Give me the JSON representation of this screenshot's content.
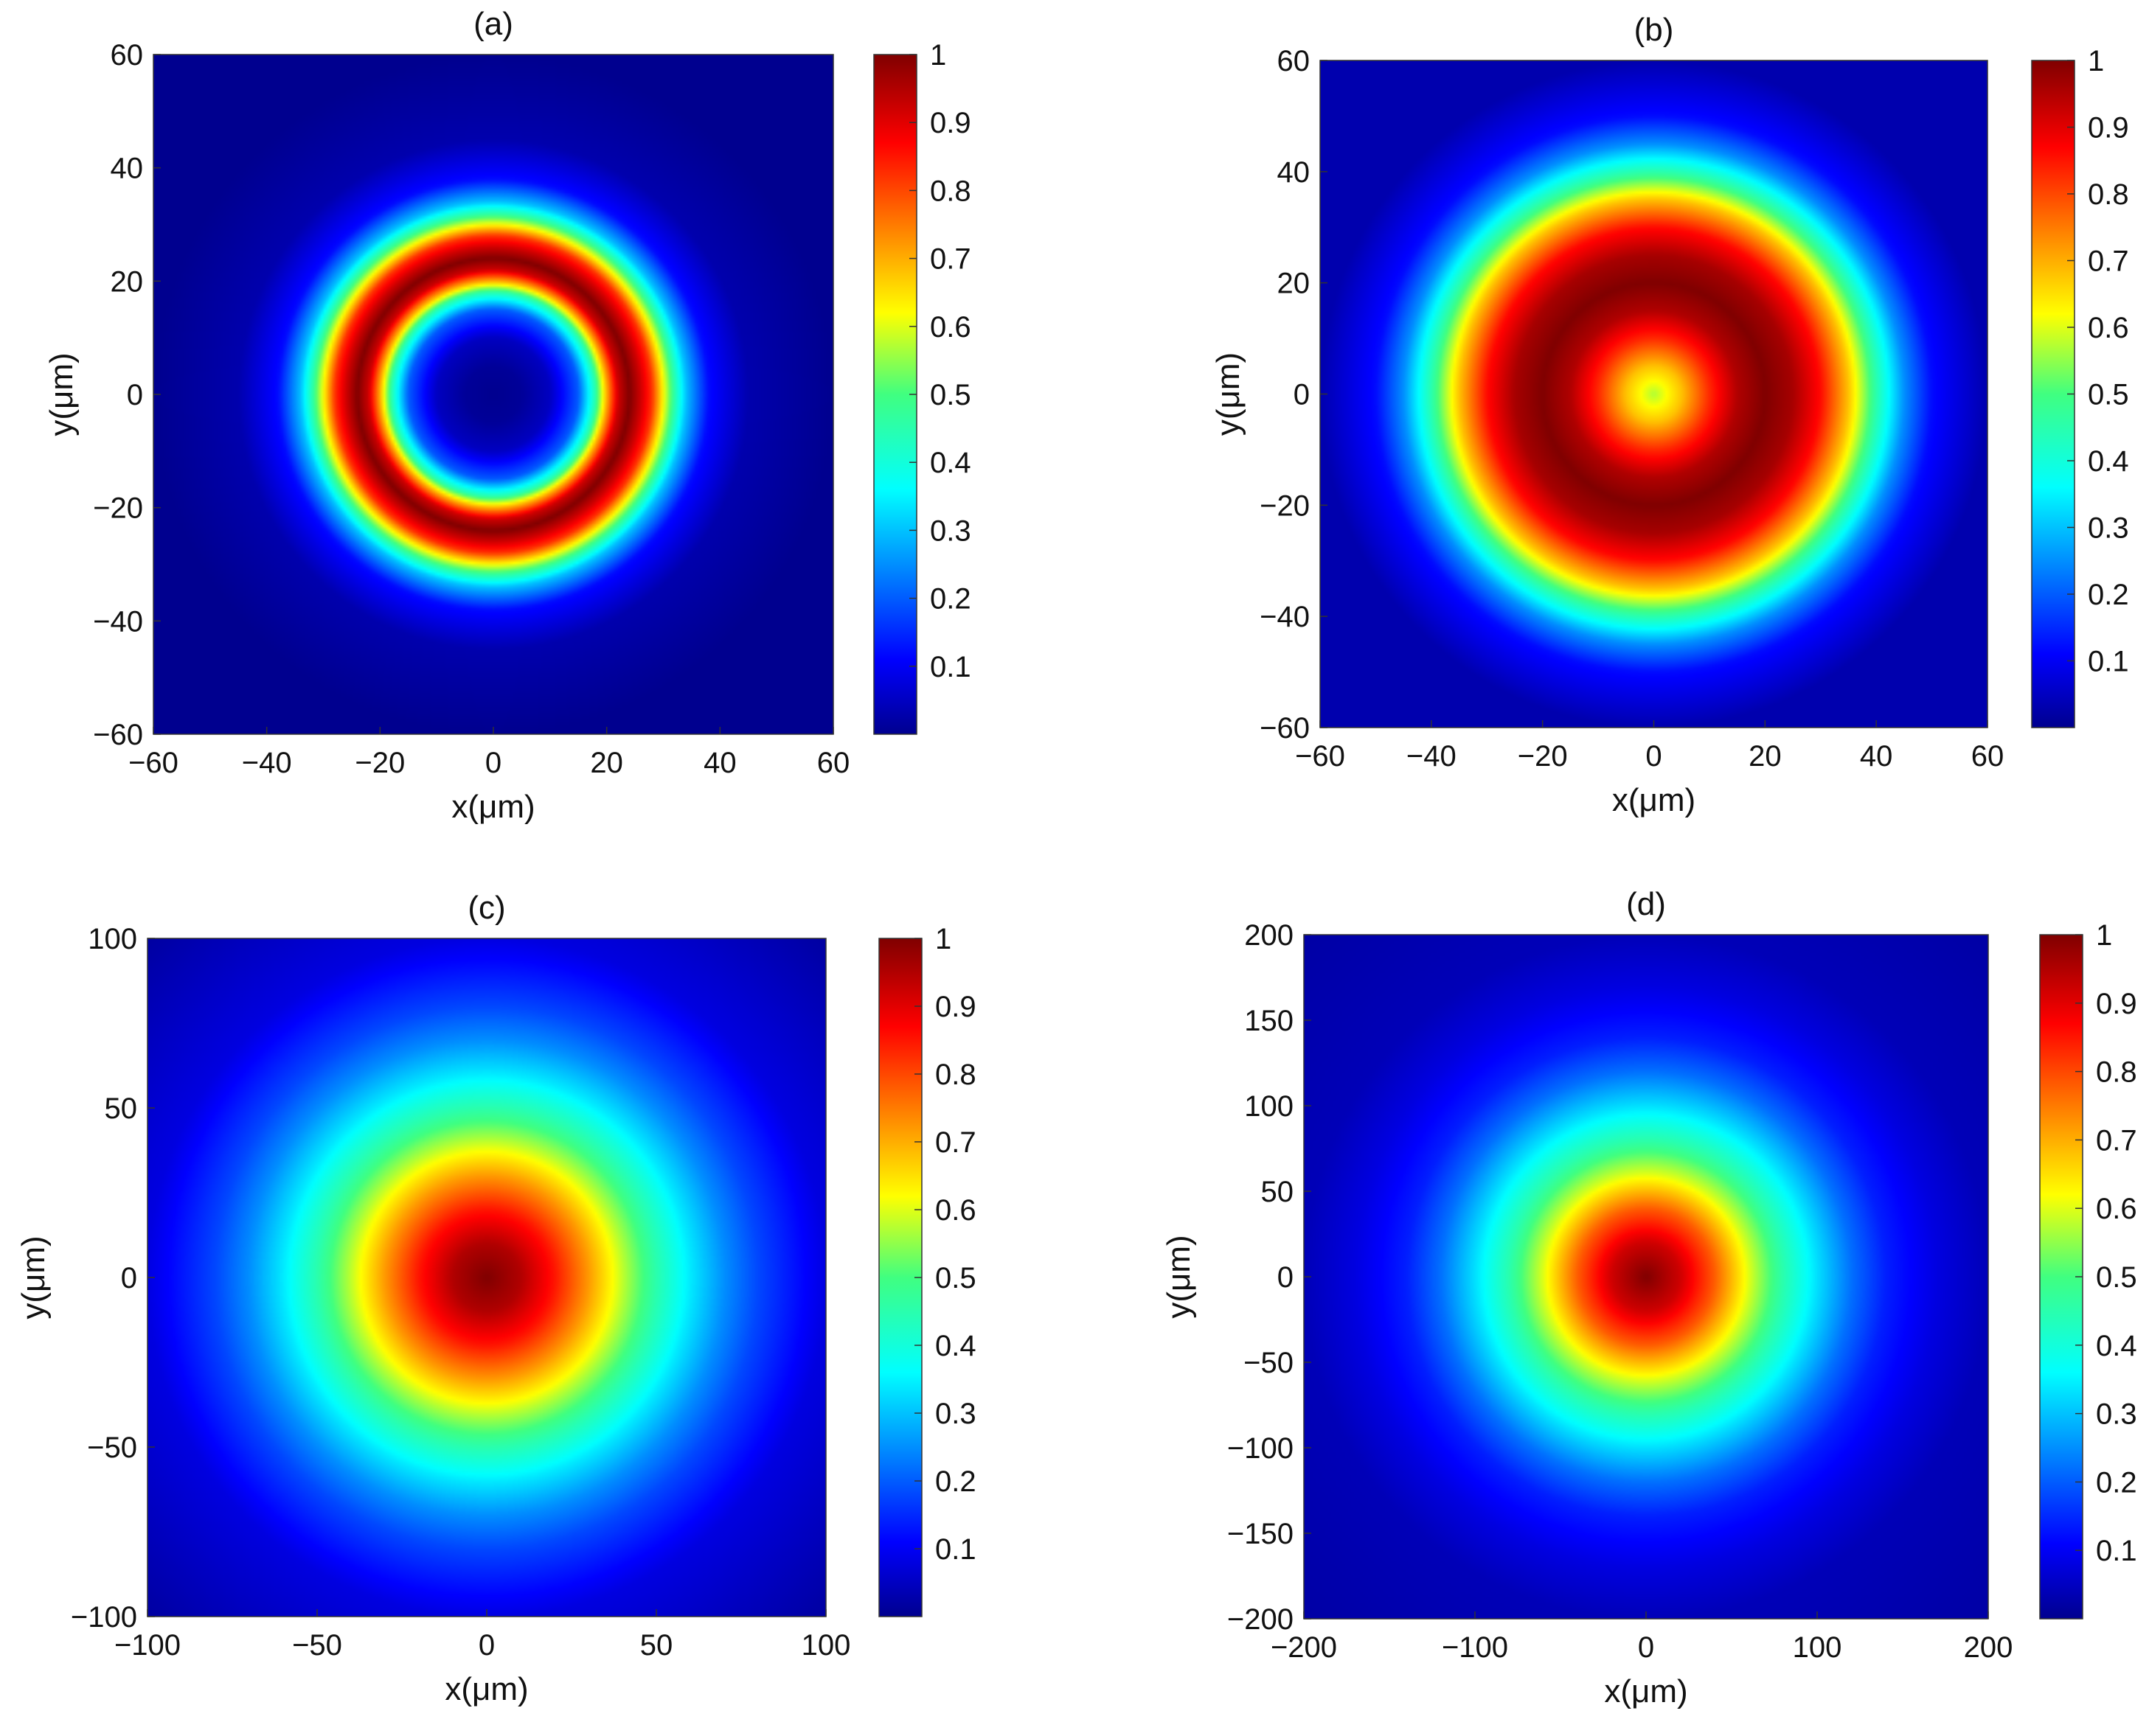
{
  "figure": {
    "panels": [
      {
        "label": "(a)",
        "xlabel": "x(μm)",
        "ylabel": "y(μm)"
      },
      {
        "label": "(b)",
        "xlabel": "x(μm)",
        "ylabel": "y(μm)"
      },
      {
        "label": "(c)",
        "xlabel": "x(μm)",
        "ylabel": "y(μm)"
      },
      {
        "label": "(d)",
        "xlabel": "x(μm)",
        "ylabel": "y(μm)"
      }
    ]
  },
  "chart_data": [
    {
      "type": "heatmap",
      "title": "(a)",
      "xlabel": "x(μm)",
      "ylabel": "y(μm)",
      "xlim": [
        -60,
        60
      ],
      "ylim": [
        -60,
        60
      ],
      "xticks": [
        -60,
        -40,
        -20,
        0,
        20,
        40,
        60
      ],
      "yticks": [
        -60,
        -40,
        -20,
        0,
        20,
        40,
        60
      ],
      "xtick_labels": [
        "−60",
        "−40",
        "−20",
        "0",
        "20",
        "40",
        "60"
      ],
      "ytick_labels": [
        "−60",
        "−40",
        "−20",
        "0",
        "20",
        "40",
        "60"
      ],
      "colormap": "jet",
      "colorbar_range": [
        0,
        1
      ],
      "colorbar_ticks": [
        0.1,
        0.2,
        0.3,
        0.4,
        0.5,
        0.6,
        0.7,
        0.8,
        0.9,
        1
      ],
      "colorbar_tick_labels": [
        "0.1",
        "0.2",
        "0.3",
        "0.4",
        "0.5",
        "0.6",
        "0.7",
        "0.8",
        "0.9",
        "1"
      ],
      "radial_profile": {
        "r": [
          0,
          5,
          10,
          15,
          18,
          20,
          22,
          24,
          26,
          28,
          30,
          32,
          34,
          38,
          45,
          60
        ],
        "value": [
          0,
          0.01,
          0.05,
          0.2,
          0.45,
          0.7,
          0.92,
          1.0,
          0.92,
          0.82,
          0.62,
          0.45,
          0.3,
          0.12,
          0.03,
          0
        ]
      }
    },
    {
      "type": "heatmap",
      "title": "(b)",
      "xlabel": "x(μm)",
      "ylabel": "y(μm)",
      "xlim": [
        -60,
        60
      ],
      "ylim": [
        -60,
        60
      ],
      "xticks": [
        -60,
        -40,
        -20,
        0,
        20,
        40,
        60
      ],
      "yticks": [
        -60,
        -40,
        -20,
        0,
        20,
        40,
        60
      ],
      "xtick_labels": [
        "−60",
        "−40",
        "−20",
        "0",
        "20",
        "40",
        "60"
      ],
      "ytick_labels": [
        "−60",
        "−40",
        "−20",
        "0",
        "20",
        "40",
        "60"
      ],
      "colormap": "jet",
      "colorbar_range": [
        0,
        1
      ],
      "colorbar_ticks": [
        0.1,
        0.2,
        0.3,
        0.4,
        0.5,
        0.6,
        0.7,
        0.8,
        0.9,
        1
      ],
      "colorbar_tick_labels": [
        "0.1",
        "0.2",
        "0.3",
        "0.4",
        "0.5",
        "0.6",
        "0.7",
        "0.8",
        "0.9",
        "1"
      ],
      "radial_profile": {
        "r": [
          0,
          5,
          10,
          15,
          20,
          25,
          30,
          35,
          40,
          45,
          50,
          60
        ],
        "value": [
          0.57,
          0.68,
          0.83,
          0.95,
          1.0,
          0.96,
          0.86,
          0.68,
          0.45,
          0.25,
          0.12,
          0.03
        ]
      }
    },
    {
      "type": "heatmap",
      "title": "(c)",
      "xlabel": "x(μm)",
      "ylabel": "y(μm)",
      "xlim": [
        -100,
        100
      ],
      "ylim": [
        -100,
        100
      ],
      "xticks": [
        -100,
        -50,
        0,
        50,
        100
      ],
      "yticks": [
        -100,
        -50,
        0,
        50,
        100
      ],
      "xtick_labels": [
        "−100",
        "−50",
        "0",
        "50",
        "100"
      ],
      "ytick_labels": [
        "−100",
        "−50",
        "0",
        "50",
        "100"
      ],
      "colormap": "jet",
      "colorbar_range": [
        0,
        1
      ],
      "colorbar_ticks": [
        0.1,
        0.2,
        0.3,
        0.4,
        0.5,
        0.6,
        0.7,
        0.8,
        0.9,
        1
      ],
      "colorbar_tick_labels": [
        "0.1",
        "0.2",
        "0.3",
        "0.4",
        "0.5",
        "0.6",
        "0.7",
        "0.8",
        "0.9",
        "1"
      ],
      "radial_profile": {
        "r": [
          0,
          10,
          20,
          30,
          40,
          50,
          60,
          70,
          80,
          100,
          140
        ],
        "value": [
          1.0,
          0.95,
          0.85,
          0.72,
          0.58,
          0.45,
          0.34,
          0.25,
          0.18,
          0.08,
          0.02
        ]
      }
    },
    {
      "type": "heatmap",
      "title": "(d)",
      "xlabel": "x(μm)",
      "ylabel": "y(μm)",
      "xlim": [
        -200,
        200
      ],
      "ylim": [
        -200,
        200
      ],
      "xticks": [
        -200,
        -100,
        0,
        100,
        200
      ],
      "yticks": [
        -200,
        -150,
        -100,
        -50,
        0,
        50,
        100,
        150,
        200
      ],
      "xtick_labels": [
        "−200",
        "−100",
        "0",
        "100",
        "200"
      ],
      "ytick_labels": [
        "−200",
        "−150",
        "−100",
        "−50",
        "0",
        "50",
        "100",
        "150",
        "200"
      ],
      "colormap": "jet",
      "colorbar_range": [
        0,
        1
      ],
      "colorbar_ticks": [
        0.1,
        0.2,
        0.3,
        0.4,
        0.5,
        0.6,
        0.7,
        0.8,
        0.9,
        1
      ],
      "colorbar_tick_labels": [
        "0.1",
        "0.2",
        "0.3",
        "0.4",
        "0.5",
        "0.6",
        "0.7",
        "0.8",
        "0.9",
        "1"
      ],
      "radial_profile": {
        "r": [
          0,
          20,
          40,
          60,
          80,
          100,
          120,
          140,
          170,
          200,
          290
        ],
        "value": [
          1.0,
          0.92,
          0.78,
          0.6,
          0.45,
          0.33,
          0.22,
          0.14,
          0.08,
          0.04,
          0.02
        ]
      }
    }
  ]
}
